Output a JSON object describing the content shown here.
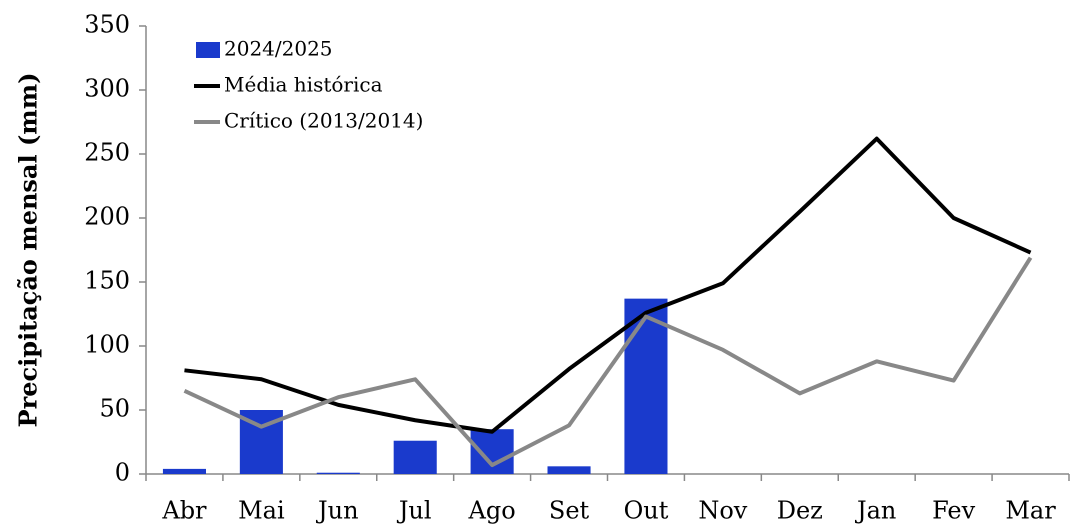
{
  "chart_data": {
    "type": "bar-line",
    "y_label": "Precipitação mensal (mm)",
    "categories": [
      "Abr",
      "Mai",
      "Jun",
      "Jul",
      "Ago",
      "Set",
      "Out",
      "Nov",
      "Dez",
      "Jan",
      "Fev",
      "Mar"
    ],
    "series": [
      {
        "name": "2024/2025",
        "type": "bar",
        "color": "#1a3acc",
        "values": [
          4,
          50,
          1,
          26,
          35,
          6,
          137,
          null,
          null,
          null,
          null,
          null
        ]
      },
      {
        "name": "Média histórica",
        "type": "line",
        "color": "#000000",
        "values": [
          81,
          74,
          54,
          42,
          33,
          82,
          126,
          149,
          205,
          262,
          200,
          173
        ]
      },
      {
        "name": "Crítico (2013/2014)",
        "type": "line",
        "color": "#888888",
        "values": [
          65,
          37,
          60,
          74,
          7,
          38,
          123,
          97,
          63,
          88,
          73,
          169
        ]
      }
    ],
    "ylim": [
      0,
      350
    ],
    "yticks": [
      0,
      50,
      100,
      150,
      200,
      250,
      300,
      350
    ],
    "grid": false,
    "legend": "top-left"
  }
}
